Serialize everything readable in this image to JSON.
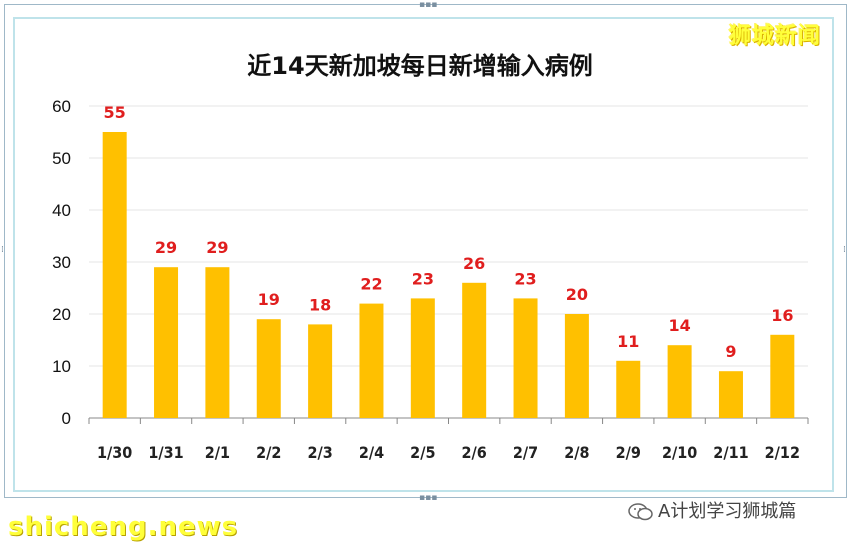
{
  "watermark": {
    "top_right": "狮城新闻",
    "bottom_left": "shicheng.news",
    "bottom_right": "A计划学习狮城篇"
  },
  "colors": {
    "bar": "#FFC000",
    "data_label": "#E01E1E",
    "grid": "#e6e6e6"
  },
  "chart_data": {
    "type": "bar",
    "title": "近14天新加坡每日新增输入病例",
    "categories": [
      "1/30",
      "1/31",
      "2/1",
      "2/2",
      "2/3",
      "2/4",
      "2/5",
      "2/6",
      "2/7",
      "2/8",
      "2/9",
      "2/10",
      "2/11",
      "2/12"
    ],
    "values": [
      55,
      29,
      29,
      19,
      18,
      22,
      23,
      26,
      23,
      20,
      11,
      14,
      9,
      16
    ],
    "ylim": [
      0,
      60
    ],
    "yticks": [
      0,
      10,
      20,
      30,
      40,
      50,
      60
    ],
    "grid": true,
    "data_labels": true,
    "legend": "none"
  }
}
